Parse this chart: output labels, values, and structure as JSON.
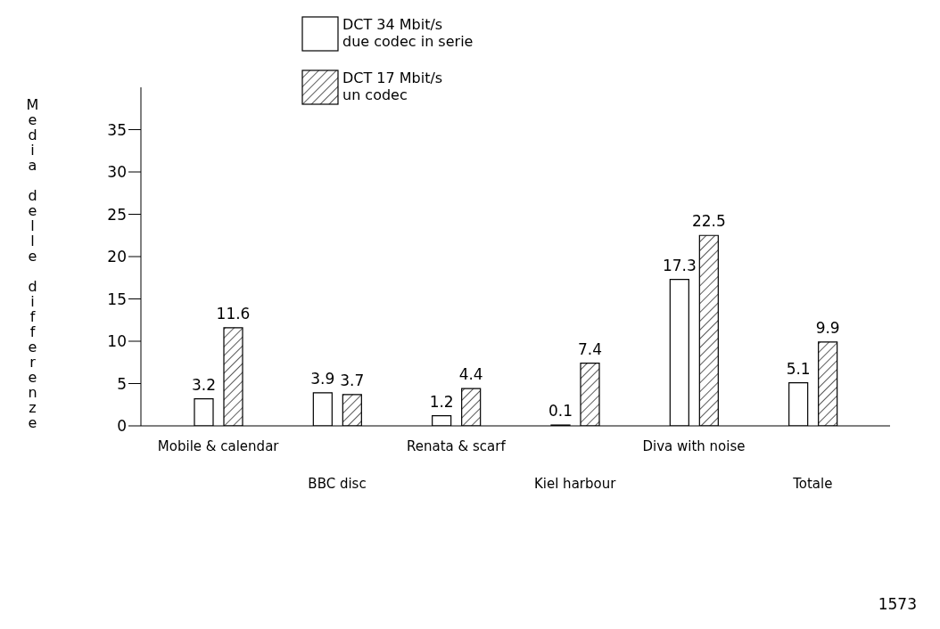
{
  "chart_data": {
    "type": "bar",
    "ylabel": "Media delle differenze",
    "categories": [
      "Mobile & calendar",
      "BBC disc",
      "Renata & scarf",
      "Kiel harbour",
      "Diva with noise",
      "Totale"
    ],
    "series": [
      {
        "name": "DCT 34 Mbit/s\ndue codec in serie",
        "color": "#ffffff",
        "values": [
          3.2,
          3.9,
          1.2,
          0.1,
          17.3,
          5.1
        ]
      },
      {
        "name": "DCT 17 Mbit/s\nun codec",
        "color": "#000000",
        "values": [
          11.6,
          3.7,
          4.4,
          7.4,
          22.5,
          9.9
        ]
      }
    ],
    "ylim": [
      0,
      40
    ],
    "yticks": [
      0,
      5,
      10,
      15,
      20,
      25,
      30,
      35
    ],
    "grid": false,
    "legend": "top",
    "data_labels": true,
    "annotations": [
      "1573"
    ]
  }
}
